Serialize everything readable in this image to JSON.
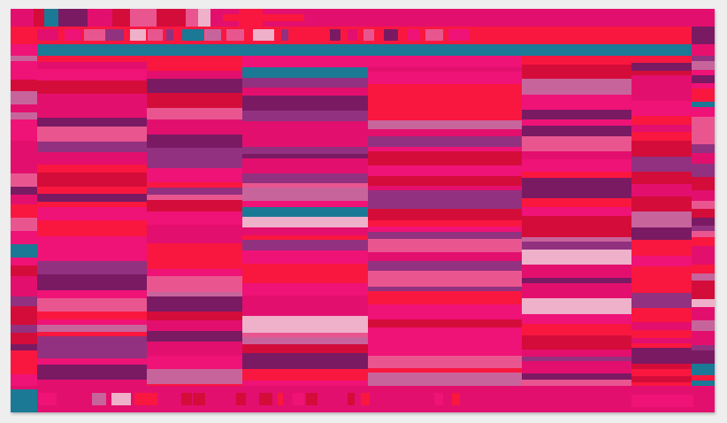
{
  "artwork": {
    "palette": {
      "hot_pink": "#ef1277",
      "magenta": "#e30f6e",
      "red": "#f9173f",
      "crimson": "#d40c3a",
      "plum": "#7a1a63",
      "violet": "#92317f",
      "lavender": "#c8649c",
      "pale_pink": "#eeb1c9",
      "teal": "#1b7996",
      "rose": "#e9568f"
    },
    "background": "#eeeeef"
  }
}
